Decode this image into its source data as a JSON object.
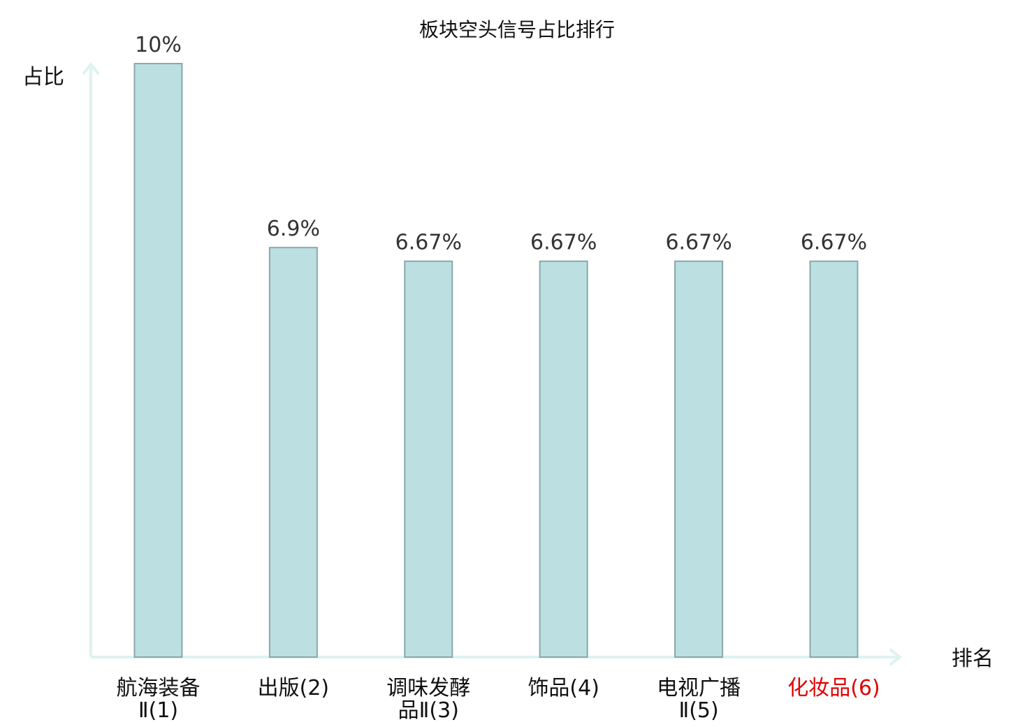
{
  "chart_data": {
    "type": "bar",
    "title": "板块空头信号占比排行",
    "ylabel": "占比",
    "xlabel": "排名",
    "ylim": [
      0,
      10
    ],
    "grid": false,
    "legend": "none",
    "categories": [
      {
        "lines": [
          "航海装备",
          "Ⅱ(1)"
        ]
      },
      {
        "lines": [
          "出版(2)"
        ]
      },
      {
        "lines": [
          "调味发酵",
          "品Ⅱ(3)"
        ]
      },
      {
        "lines": [
          "饰品(4)"
        ]
      },
      {
        "lines": [
          "电视广播",
          "Ⅱ(5)"
        ]
      },
      {
        "lines": [
          "化妆品(6)"
        ]
      }
    ],
    "values": [
      10,
      6.9,
      6.67,
      6.67,
      6.67,
      6.67
    ],
    "value_labels": [
      "10%",
      "6.9%",
      "6.67%",
      "6.67%",
      "6.67%",
      "6.67%"
    ],
    "highlight_index": 5,
    "colors": {
      "bar_fill": "#bce0e2",
      "bar_stroke": "#88a8ac",
      "axis": "#dff2ef",
      "label_default": "#111111",
      "label_highlight": "#e00000",
      "value_text": "#333333"
    }
  }
}
